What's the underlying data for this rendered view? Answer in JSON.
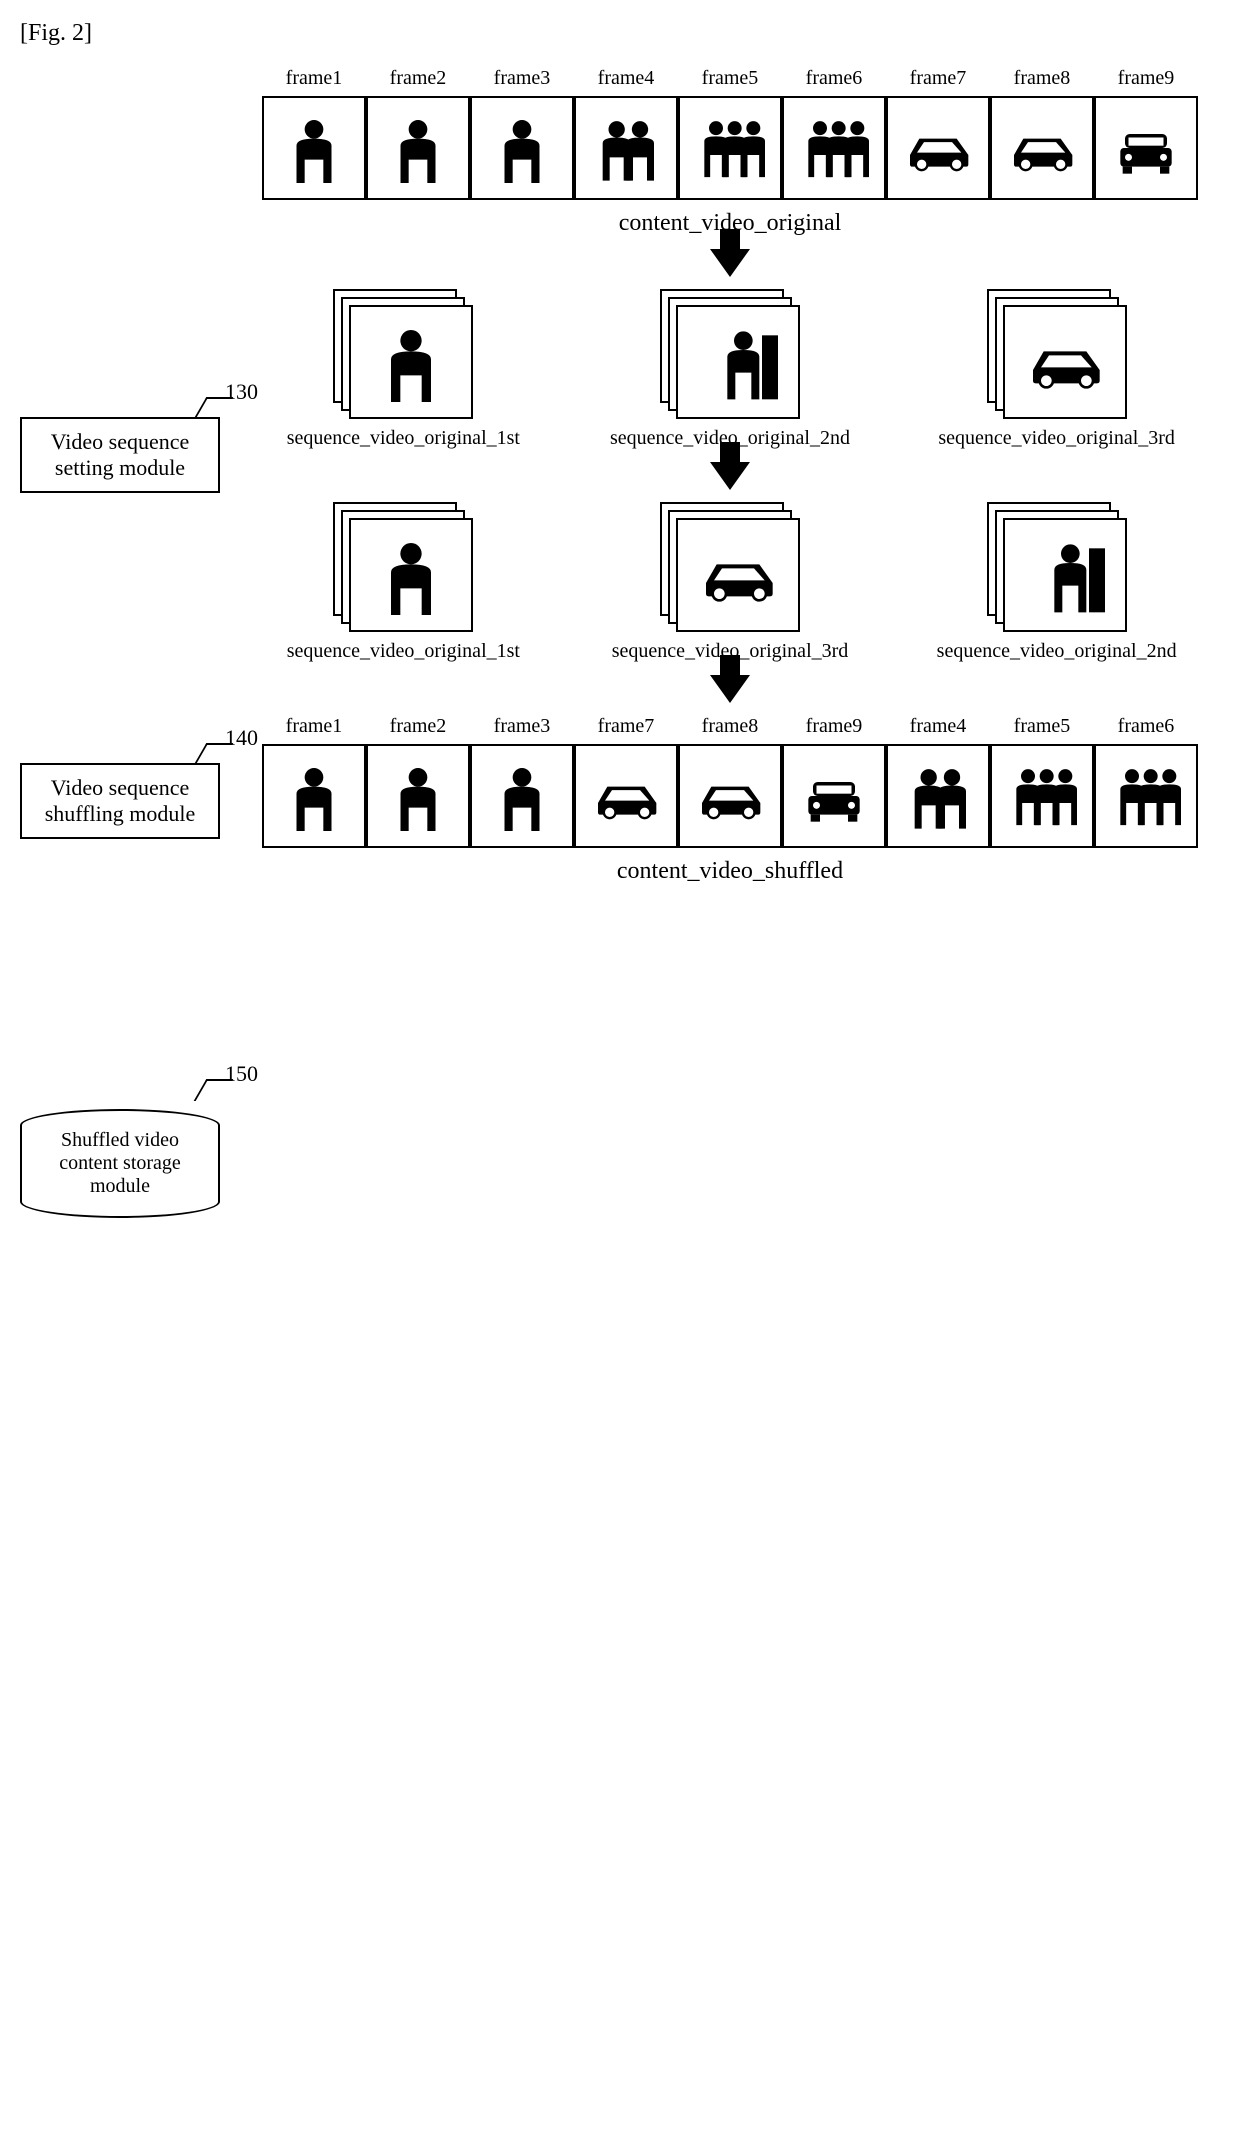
{
  "figure_label": "[Fig. 2]",
  "modules": {
    "setting": {
      "ref": "130",
      "label": "Video sequence setting module"
    },
    "shuffling": {
      "ref": "140",
      "label": "Video sequence shuffling module"
    },
    "storage": {
      "ref": "150",
      "label": "Shuffled video content storage module"
    }
  },
  "labels": {
    "original": "content_video_original",
    "shuffled": "content_video_shuffled",
    "seq1": "sequence_video_original_1st",
    "seq2": "sequence_video_original_2nd",
    "seq3": "sequence_video_original_3rd"
  },
  "frames_original": [
    {
      "label": "frame1",
      "icon": "person1"
    },
    {
      "label": "frame2",
      "icon": "person1"
    },
    {
      "label": "frame3",
      "icon": "person1"
    },
    {
      "label": "frame4",
      "icon": "person2"
    },
    {
      "label": "frame5",
      "icon": "person3"
    },
    {
      "label": "frame6",
      "icon": "person3"
    },
    {
      "label": "frame7",
      "icon": "car"
    },
    {
      "label": "frame8",
      "icon": "car"
    },
    {
      "label": "frame9",
      "icon": "car-front"
    }
  ],
  "seq_row1": [
    {
      "icon": "person1",
      "label_key": "seq1"
    },
    {
      "icon": "person2-half",
      "label_key": "seq2"
    },
    {
      "icon": "car",
      "label_key": "seq3"
    }
  ],
  "seq_row2": [
    {
      "icon": "person1",
      "label_key": "seq1"
    },
    {
      "icon": "car",
      "label_key": "seq3"
    },
    {
      "icon": "person2-half",
      "label_key": "seq2"
    }
  ],
  "frames_shuffled": [
    {
      "label": "frame1",
      "icon": "person1"
    },
    {
      "label": "frame2",
      "icon": "person1"
    },
    {
      "label": "frame3",
      "icon": "person1"
    },
    {
      "label": "frame7",
      "icon": "car"
    },
    {
      "label": "frame8",
      "icon": "car"
    },
    {
      "label": "frame9",
      "icon": "car-front"
    },
    {
      "label": "frame4",
      "icon": "person2"
    },
    {
      "label": "frame5",
      "icon": "person3"
    },
    {
      "label": "frame6",
      "icon": "person3"
    }
  ],
  "colors": {
    "line": "#000000",
    "bg": "#ffffff"
  }
}
